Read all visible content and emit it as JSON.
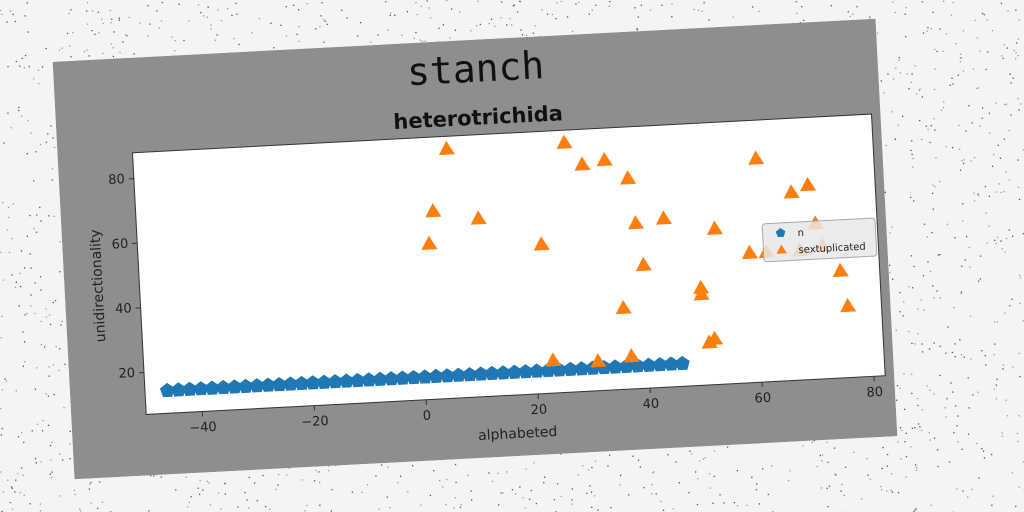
{
  "chart_data": {
    "type": "scatter",
    "title": "stanch",
    "subtitle": "heterotrichida",
    "xlabel": "alphabeted",
    "ylabel": "unidirectionality",
    "xlim": [
      -50,
      82
    ],
    "ylim": [
      7,
      88
    ],
    "xticks": [
      -40,
      -20,
      0,
      20,
      40,
      60,
      80
    ],
    "yticks": [
      20,
      40,
      60,
      80
    ],
    "grid": false,
    "legend_position": "center-right",
    "series": [
      {
        "name": "n",
        "marker": "pentagon",
        "color": "#1f77b4",
        "x": [
          -46,
          -44,
          -42,
          -40,
          -38,
          -36,
          -34,
          -32,
          -30,
          -28,
          -26,
          -24,
          -22,
          -20,
          -18,
          -16,
          -14,
          -12,
          -10,
          -8,
          -6,
          -4,
          -2,
          0,
          2,
          4,
          6,
          8,
          10,
          12,
          14,
          16,
          18,
          20,
          22,
          24,
          26,
          28,
          30,
          32,
          34,
          36,
          38,
          40,
          42,
          44,
          46
        ],
        "y": [
          14,
          14,
          14,
          14,
          14,
          14,
          14,
          14,
          14,
          14,
          14,
          14,
          14,
          14,
          14,
          14,
          14,
          14,
          14,
          14,
          14,
          14,
          14,
          14,
          14,
          14,
          14,
          14,
          14,
          14,
          14,
          14,
          14,
          14,
          14,
          14,
          14,
          14,
          14,
          14,
          14,
          14,
          14,
          14,
          14,
          14,
          14
        ]
      },
      {
        "name": "sextuplicated",
        "marker": "triangle",
        "color": "#ff7f0e",
        "x": [
          2,
          3,
          6,
          11,
          22,
          23,
          27,
          30,
          31,
          34,
          36,
          37,
          38,
          39,
          40,
          44,
          50,
          50,
          51,
          52,
          53,
          59,
          61,
          62,
          67,
          68,
          70,
          71,
          72,
          75,
          76
        ],
        "y": [
          55,
          65,
          84,
          62,
          53,
          17,
          84,
          77,
          16,
          78,
          32,
          17,
          72,
          58,
          45,
          59,
          37,
          35,
          20,
          21,
          55,
          47,
          76,
          47,
          65,
          47,
          67,
          55,
          48,
          40,
          29
        ]
      }
    ]
  }
}
